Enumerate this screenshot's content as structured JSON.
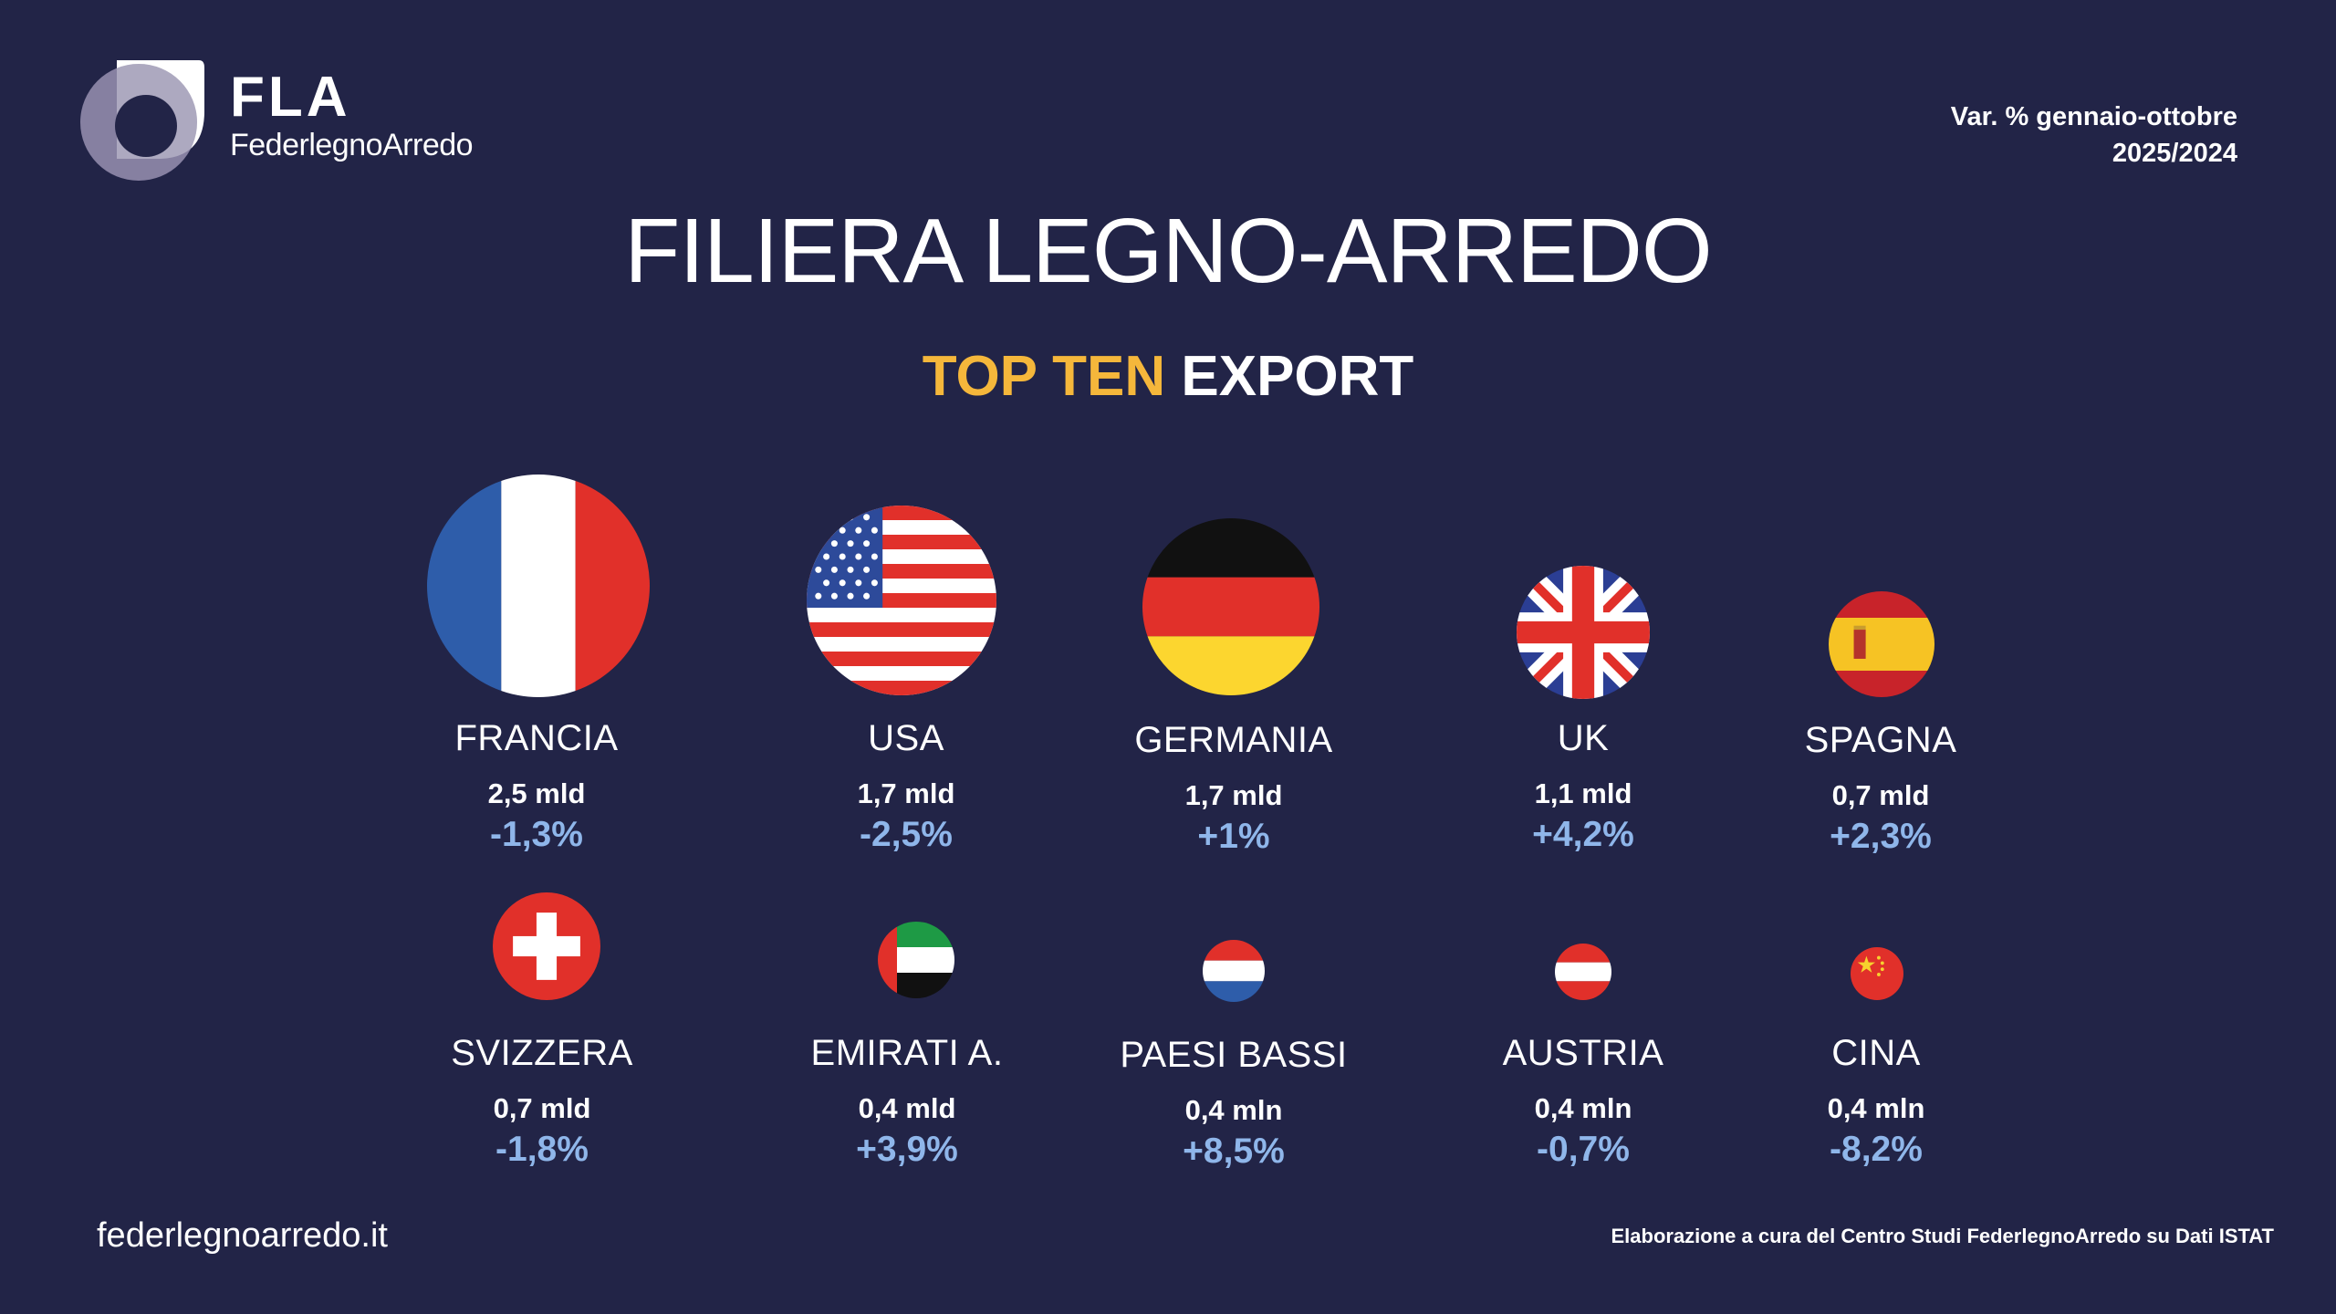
{
  "brand": {
    "logo_icon": "fla-logo-icon",
    "abbr": "FLA",
    "name": "FederlegnoArredo"
  },
  "period": {
    "line1": "Var. % gennaio-ottobre",
    "line2": "2025/2024"
  },
  "title": "FILIERA LEGNO-ARREDO",
  "subtitle": {
    "highlight": "TOP TEN",
    "rest": "EXPORT"
  },
  "colors": {
    "background": "#222447",
    "accent": "#F5B73B",
    "change": "#8FB6EA"
  },
  "countries": [
    {
      "name": "FRANCIA",
      "value": "2,5 mld",
      "change": "-1,3%",
      "flag": "france-flag-icon"
    },
    {
      "name": "USA",
      "value": "1,7 mld",
      "change": "-2,5%",
      "flag": "usa-flag-icon"
    },
    {
      "name": "GERMANIA",
      "value": "1,7 mld",
      "change": "+1%",
      "flag": "germany-flag-icon"
    },
    {
      "name": "UK",
      "value": "1,1 mld",
      "change": "+4,2%",
      "flag": "uk-flag-icon"
    },
    {
      "name": "SPAGNA",
      "value": "0,7 mld",
      "change": "+2,3%",
      "flag": "spain-flag-icon"
    },
    {
      "name": "SVIZZERA",
      "value": "0,7 mld",
      "change": "-1,8%",
      "flag": "switzerland-flag-icon"
    },
    {
      "name": "EMIRATI A.",
      "value": "0,4 mld",
      "change": "+3,9%",
      "flag": "uae-flag-icon"
    },
    {
      "name": "PAESI BASSI",
      "value": "0,4 mln",
      "change": "+8,5%",
      "flag": "netherlands-flag-icon"
    },
    {
      "name": "AUSTRIA",
      "value": "0,4 mln",
      "change": "-0,7%",
      "flag": "austria-flag-icon"
    },
    {
      "name": "CINA",
      "value": "0,4 mln",
      "change": "-8,2%",
      "flag": "china-flag-icon"
    }
  ],
  "footer": {
    "website": "federlegnoarredo.it",
    "source": "Elaborazione a cura del Centro Studi FederlegnoArredo su Dati ISTAT"
  }
}
